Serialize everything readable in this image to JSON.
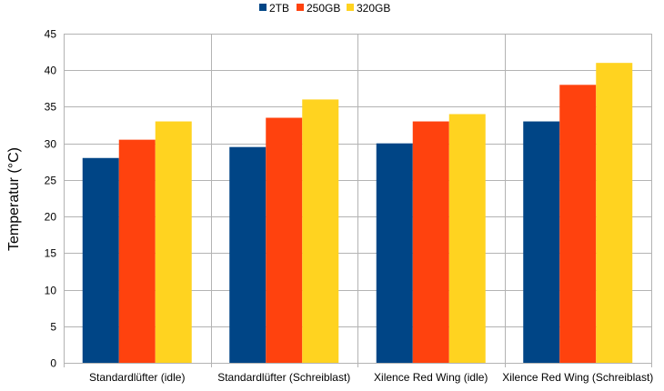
{
  "chart_data": {
    "type": "bar",
    "ylabel": "Temperatur (°C)",
    "ylim": [
      0,
      45
    ],
    "ytick_step": 5,
    "grid": true,
    "legend_position": "top",
    "categories": [
      "Standardlüfter (idle)",
      "Standardlüfter (Schreiblast)",
      "Xilence Red Wing (idle)",
      "Xilence Red Wing (Schreiblast)"
    ],
    "series": [
      {
        "name": "2TB",
        "color": "#004586",
        "values": [
          28,
          29.5,
          30,
          33
        ]
      },
      {
        "name": "250GB",
        "color": "#ff420e",
        "values": [
          30.5,
          33.5,
          33,
          38
        ]
      },
      {
        "name": "320GB",
        "color": "#ffd320",
        "values": [
          33,
          36,
          34,
          41
        ]
      }
    ]
  }
}
